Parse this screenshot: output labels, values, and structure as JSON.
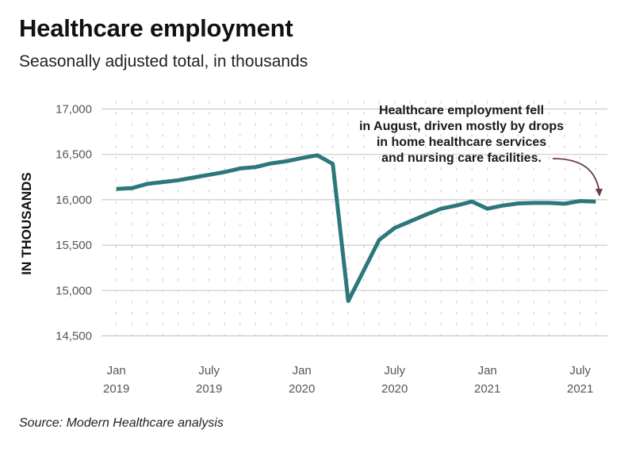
{
  "title": "Healthcare employment",
  "subtitle": "Seasonally adjusted total, in thousands",
  "source": "Source: Modern Healthcare analysis",
  "colors": {
    "line": "#2d777b",
    "arrow": "#6e3a4e",
    "grid": "#cccccc"
  },
  "chart_data": {
    "type": "line",
    "title": "Healthcare employment",
    "ylabel": "IN THOUSANDS",
    "xlabel": "",
    "ylim": [
      14500,
      17000
    ],
    "yticks": [
      {
        "value": 17000,
        "label": "17,000"
      },
      {
        "value": 16500,
        "label": "16,500"
      },
      {
        "value": 16000,
        "label": "16,000"
      },
      {
        "value": 15500,
        "label": "15,500"
      },
      {
        "value": 15000,
        "label": "15,000"
      },
      {
        "value": 14500,
        "label": "14,500"
      }
    ],
    "xticks": [
      {
        "x": "2019-01",
        "line1": "Jan",
        "line2": "2019"
      },
      {
        "x": "2019-07",
        "line1": "July",
        "line2": "2019"
      },
      {
        "x": "2020-01",
        "line1": "Jan",
        "line2": "2020"
      },
      {
        "x": "2020-07",
        "line1": "July",
        "line2": "2020"
      },
      {
        "x": "2021-01",
        "line1": "Jan",
        "line2": "2021"
      },
      {
        "x": "2021-07",
        "line1": "July",
        "line2": "2021"
      }
    ],
    "grid": true,
    "x": [
      "2019-01",
      "2019-02",
      "2019-03",
      "2019-04",
      "2019-05",
      "2019-06",
      "2019-07",
      "2019-08",
      "2019-09",
      "2019-10",
      "2019-11",
      "2019-12",
      "2020-01",
      "2020-02",
      "2020-03",
      "2020-04",
      "2020-05",
      "2020-06",
      "2020-07",
      "2020-08",
      "2020-09",
      "2020-10",
      "2020-11",
      "2020-12",
      "2021-01",
      "2021-02",
      "2021-03",
      "2021-04",
      "2021-05",
      "2021-06",
      "2021-07",
      "2021-08"
    ],
    "values": [
      16120,
      16128,
      16175,
      16195,
      16215,
      16245,
      16275,
      16305,
      16345,
      16360,
      16400,
      16425,
      16460,
      16490,
      16395,
      14884,
      15220,
      15558,
      15689,
      15761,
      15834,
      15901,
      15936,
      15980,
      15901,
      15936,
      15960,
      15965,
      15965,
      15956,
      15986,
      15980
    ],
    "annotation": {
      "lines": [
        "Healthcare employment fell",
        "in August, driven mostly by drops",
        "in home healthcare services",
        "and nursing care facilities."
      ],
      "points_to": "2021-08"
    }
  }
}
